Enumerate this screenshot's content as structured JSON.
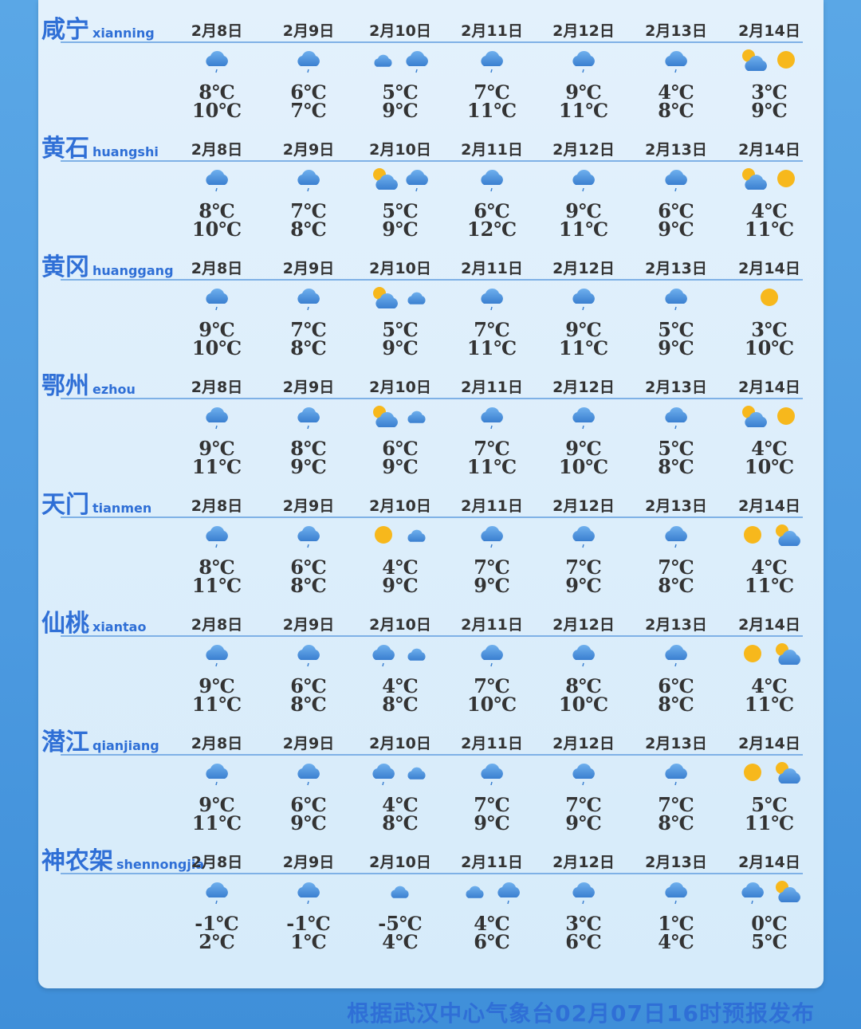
{
  "dates": [
    "2月8日",
    "2月9日",
    "2月10日",
    "2月11日",
    "2月12日",
    "2月13日",
    "2月14日"
  ],
  "colors": {
    "accent": "#2f6fd6",
    "cloud": "#4a8fdc",
    "sun": "#f7b81c"
  },
  "cities": [
    {
      "name": "咸宁",
      "pinyin": "xianning",
      "days": [
        {
          "icons": [
            "rain"
          ],
          "low": "8℃",
          "high": "10℃"
        },
        {
          "icons": [
            "rain"
          ],
          "low": "6℃",
          "high": "7℃"
        },
        {
          "icons": [
            "cloud",
            "rain"
          ],
          "low": "5℃",
          "high": "9℃"
        },
        {
          "icons": [
            "rain"
          ],
          "low": "7℃",
          "high": "11℃"
        },
        {
          "icons": [
            "rain"
          ],
          "low": "9℃",
          "high": "11℃"
        },
        {
          "icons": [
            "rain"
          ],
          "low": "4℃",
          "high": "8℃"
        },
        {
          "icons": [
            "partly-cloudy",
            "sun"
          ],
          "low": "3℃",
          "high": "9℃"
        }
      ]
    },
    {
      "name": "黄石",
      "pinyin": "huangshi",
      "days": [
        {
          "icons": [
            "rain"
          ],
          "low": "8℃",
          "high": "10℃"
        },
        {
          "icons": [
            "rain"
          ],
          "low": "7℃",
          "high": "8℃"
        },
        {
          "icons": [
            "partly-cloudy",
            "rain"
          ],
          "low": "5℃",
          "high": "9℃"
        },
        {
          "icons": [
            "rain"
          ],
          "low": "6℃",
          "high": "12℃"
        },
        {
          "icons": [
            "rain"
          ],
          "low": "9℃",
          "high": "11℃"
        },
        {
          "icons": [
            "rain"
          ],
          "low": "6℃",
          "high": "9℃"
        },
        {
          "icons": [
            "partly-cloudy",
            "sun"
          ],
          "low": "4℃",
          "high": "11℃"
        }
      ]
    },
    {
      "name": "黄冈",
      "pinyin": "huanggang",
      "days": [
        {
          "icons": [
            "rain"
          ],
          "low": "9℃",
          "high": "10℃"
        },
        {
          "icons": [
            "rain"
          ],
          "low": "7℃",
          "high": "8℃"
        },
        {
          "icons": [
            "partly-cloudy",
            "cloud"
          ],
          "low": "5℃",
          "high": "9℃"
        },
        {
          "icons": [
            "rain"
          ],
          "low": "7℃",
          "high": "11℃"
        },
        {
          "icons": [
            "rain"
          ],
          "low": "9℃",
          "high": "11℃"
        },
        {
          "icons": [
            "rain"
          ],
          "low": "5℃",
          "high": "9℃"
        },
        {
          "icons": [
            "sun"
          ],
          "low": "3℃",
          "high": "10℃"
        }
      ]
    },
    {
      "name": "鄂州",
      "pinyin": "ezhou",
      "days": [
        {
          "icons": [
            "rain"
          ],
          "low": "9℃",
          "high": "11℃"
        },
        {
          "icons": [
            "rain"
          ],
          "low": "8℃",
          "high": "9℃"
        },
        {
          "icons": [
            "partly-cloudy",
            "cloud"
          ],
          "low": "6℃",
          "high": "9℃"
        },
        {
          "icons": [
            "rain"
          ],
          "low": "7℃",
          "high": "11℃"
        },
        {
          "icons": [
            "rain"
          ],
          "low": "9℃",
          "high": "10℃"
        },
        {
          "icons": [
            "rain"
          ],
          "low": "5℃",
          "high": "8℃"
        },
        {
          "icons": [
            "partly-cloudy",
            "sun"
          ],
          "low": "4℃",
          "high": "10℃"
        }
      ]
    },
    {
      "name": "天门",
      "pinyin": "tianmen",
      "days": [
        {
          "icons": [
            "rain"
          ],
          "low": "8℃",
          "high": "11℃"
        },
        {
          "icons": [
            "rain"
          ],
          "low": "6℃",
          "high": "8℃"
        },
        {
          "icons": [
            "sun",
            "cloud"
          ],
          "low": "4℃",
          "high": "9℃"
        },
        {
          "icons": [
            "rain"
          ],
          "low": "7℃",
          "high": "9℃"
        },
        {
          "icons": [
            "rain"
          ],
          "low": "7℃",
          "high": "9℃"
        },
        {
          "icons": [
            "rain"
          ],
          "low": "7℃",
          "high": "8℃"
        },
        {
          "icons": [
            "sun",
            "partly-cloudy"
          ],
          "low": "4℃",
          "high": "11℃"
        }
      ]
    },
    {
      "name": "仙桃",
      "pinyin": "xiantao",
      "days": [
        {
          "icons": [
            "rain"
          ],
          "low": "9℃",
          "high": "11℃"
        },
        {
          "icons": [
            "rain"
          ],
          "low": "6℃",
          "high": "8℃"
        },
        {
          "icons": [
            "rain",
            "cloud"
          ],
          "low": "4℃",
          "high": "8℃"
        },
        {
          "icons": [
            "rain"
          ],
          "low": "7℃",
          "high": "10℃"
        },
        {
          "icons": [
            "rain"
          ],
          "low": "8℃",
          "high": "10℃"
        },
        {
          "icons": [
            "rain"
          ],
          "low": "6℃",
          "high": "8℃"
        },
        {
          "icons": [
            "sun",
            "partly-cloudy"
          ],
          "low": "4℃",
          "high": "11℃"
        }
      ]
    },
    {
      "name": "潜江",
      "pinyin": "qianjiang",
      "days": [
        {
          "icons": [
            "rain"
          ],
          "low": "9℃",
          "high": "11℃"
        },
        {
          "icons": [
            "rain"
          ],
          "low": "6℃",
          "high": "9℃"
        },
        {
          "icons": [
            "rain",
            "cloud"
          ],
          "low": "4℃",
          "high": "8℃"
        },
        {
          "icons": [
            "rain"
          ],
          "low": "7℃",
          "high": "9℃"
        },
        {
          "icons": [
            "rain"
          ],
          "low": "7℃",
          "high": "9℃"
        },
        {
          "icons": [
            "rain"
          ],
          "low": "7℃",
          "high": "8℃"
        },
        {
          "icons": [
            "sun",
            "partly-cloudy"
          ],
          "low": "5℃",
          "high": "11℃"
        }
      ]
    },
    {
      "name": "神农架",
      "pinyin": "shennongjia",
      "days": [
        {
          "icons": [
            "rain"
          ],
          "low": "-1℃",
          "high": "2℃"
        },
        {
          "icons": [
            "rain"
          ],
          "low": "-1℃",
          "high": "1℃"
        },
        {
          "icons": [
            "cloud"
          ],
          "low": "-5℃",
          "high": "4℃"
        },
        {
          "icons": [
            "cloud",
            "rain"
          ],
          "low": "4℃",
          "high": "6℃"
        },
        {
          "icons": [
            "rain"
          ],
          "low": "3℃",
          "high": "6℃"
        },
        {
          "icons": [
            "rain"
          ],
          "low": "1℃",
          "high": "4℃"
        },
        {
          "icons": [
            "rain",
            "partly-cloudy"
          ],
          "low": "0℃",
          "high": "5℃"
        }
      ]
    }
  ],
  "footer": "根据武汉中心气象台02月07日16时预报发布"
}
